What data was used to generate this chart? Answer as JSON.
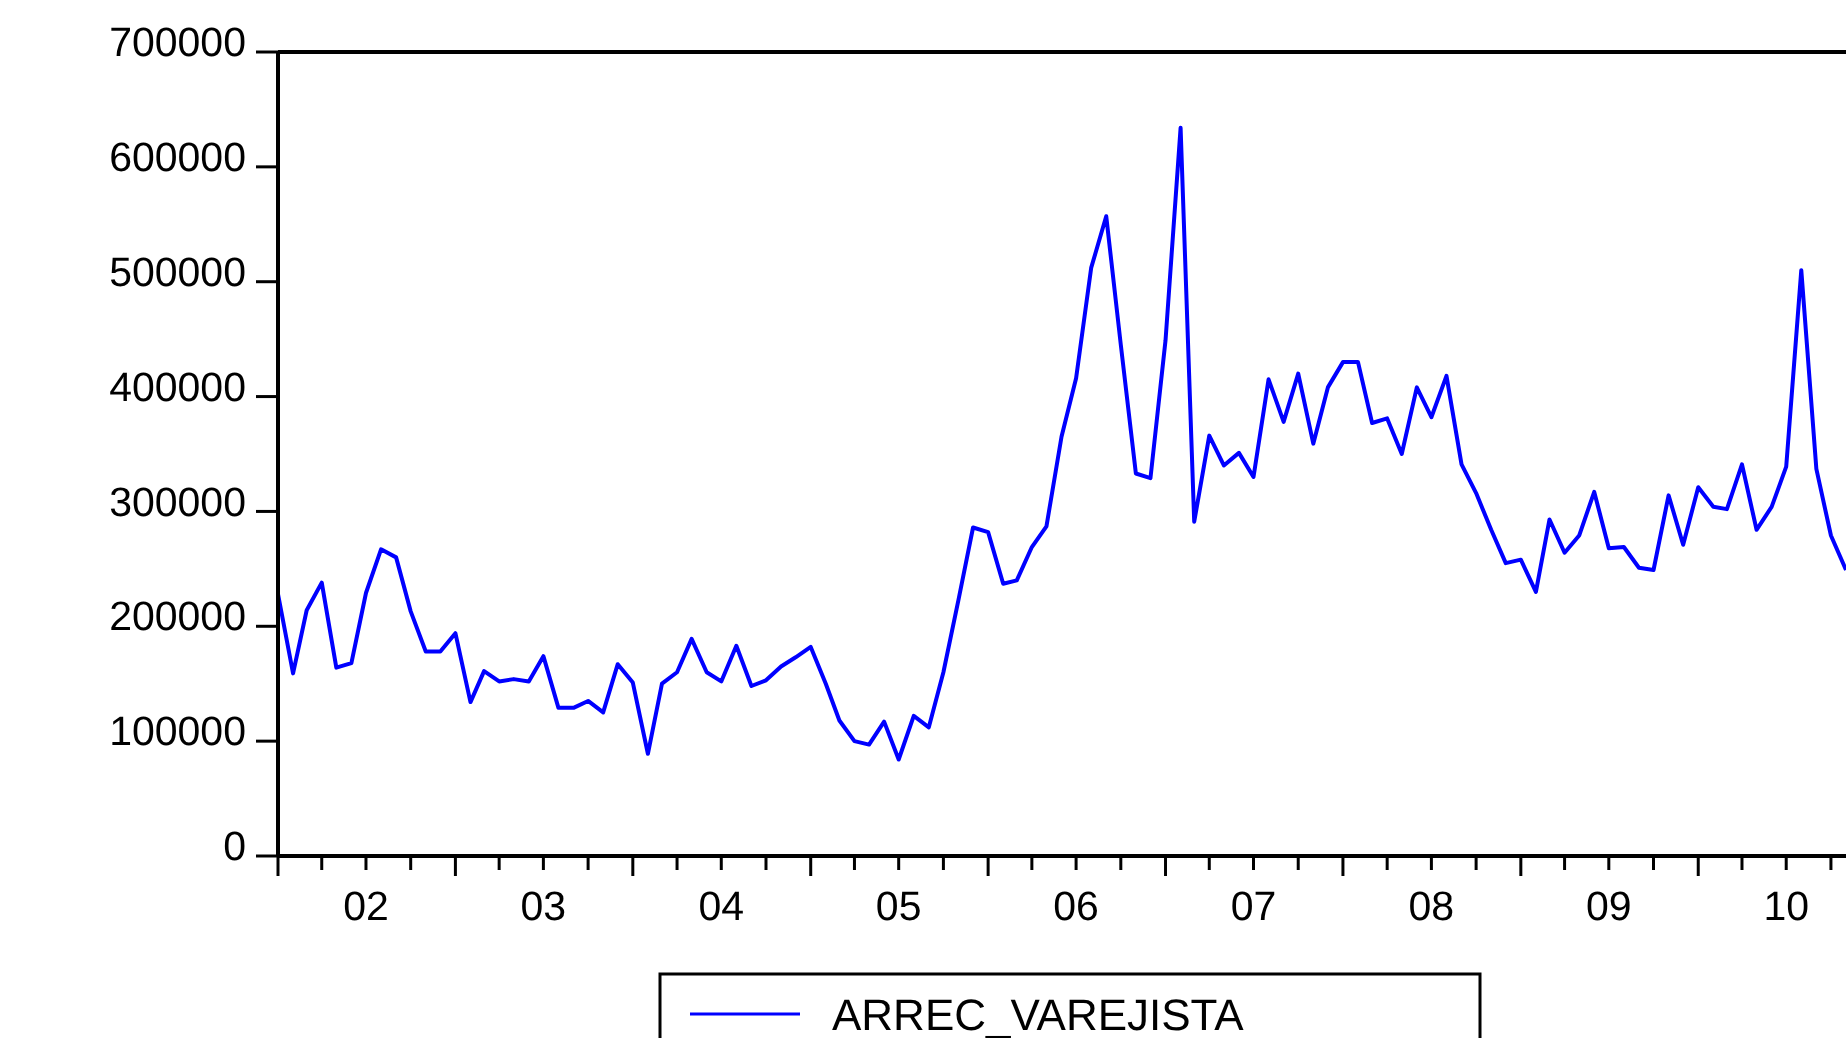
{
  "chart_data": {
    "type": "line",
    "x": [
      "2002-01",
      "2002-02",
      "2002-03",
      "2002-04",
      "2002-05",
      "2002-06",
      "2002-07",
      "2002-08",
      "2002-09",
      "2002-10",
      "2002-11",
      "2002-12",
      "2003-01",
      "2003-02",
      "2003-03",
      "2003-04",
      "2003-05",
      "2003-06",
      "2003-07",
      "2003-08",
      "2003-09",
      "2003-10",
      "2003-11",
      "2003-12",
      "2004-01",
      "2004-02",
      "2004-03",
      "2004-04",
      "2004-05",
      "2004-06",
      "2004-07",
      "2004-08",
      "2004-09",
      "2004-10",
      "2004-11",
      "2004-12",
      "2005-01",
      "2005-02",
      "2005-03",
      "2005-04",
      "2005-05",
      "2005-06",
      "2005-07",
      "2005-08",
      "2005-09",
      "2005-10",
      "2005-11",
      "2005-12",
      "2006-01",
      "2006-02",
      "2006-03",
      "2006-04",
      "2006-05",
      "2006-06",
      "2006-07",
      "2006-08",
      "2006-09",
      "2006-10",
      "2006-11",
      "2006-12",
      "2007-01",
      "2007-02",
      "2007-03",
      "2007-04",
      "2007-05",
      "2007-06",
      "2007-07",
      "2007-08",
      "2007-09",
      "2007-10",
      "2007-11",
      "2007-12",
      "2008-01",
      "2008-02",
      "2008-03",
      "2008-04",
      "2008-05",
      "2008-06",
      "2008-07",
      "2008-08",
      "2008-09",
      "2008-10",
      "2008-11",
      "2008-12",
      "2009-01",
      "2009-02",
      "2009-03",
      "2009-04",
      "2009-05",
      "2009-06",
      "2009-07",
      "2009-08",
      "2009-09",
      "2009-10",
      "2009-11",
      "2009-12",
      "2010-01",
      "2010-02",
      "2010-03",
      "2010-04",
      "2010-05",
      "2010-06",
      "2010-07",
      "2010-08",
      "2010-09",
      "2010-10",
      "2010-11"
    ],
    "series": [
      {
        "name": "ARREC_VAREJISTA",
        "color": "#0000ff",
        "values": [
          228000,
          159000,
          214000,
          238000,
          164000,
          168000,
          229000,
          267000,
          260000,
          213000,
          178000,
          178000,
          194000,
          134000,
          161000,
          152000,
          154000,
          152000,
          174000,
          129000,
          129000,
          135000,
          125000,
          167000,
          151000,
          89000,
          150000,
          160000,
          189000,
          160000,
          152000,
          183000,
          148000,
          153000,
          165000,
          173000,
          182000,
          150000,
          118000,
          100000,
          97000,
          117000,
          84000,
          122000,
          112000,
          160000,
          223000,
          286000,
          282000,
          237000,
          240000,
          269000,
          287000,
          365000,
          416000,
          512000,
          557000,
          445000,
          333000,
          329000,
          449000,
          634000,
          291000,
          366000,
          340000,
          351000,
          330000,
          415000,
          378000,
          420000,
          359000,
          408000,
          430000,
          430000,
          377000,
          381000,
          350000,
          408000,
          382000,
          418000,
          341000,
          316000,
          284000,
          255000,
          258000,
          230000,
          293000,
          264000,
          279000,
          317000,
          268000,
          269000,
          251000,
          249000,
          314000,
          271000,
          321000,
          304000,
          302000,
          341000,
          284000,
          304000,
          339000,
          510000,
          337000,
          279000,
          249000
        ]
      }
    ],
    "xlim": [
      "2002-01",
      "2010-11"
    ],
    "xticks": [
      {
        "value": "2002-01",
        "label": null
      },
      {
        "value": "2002-04",
        "label": null
      },
      {
        "value": "2002-07",
        "label": "02"
      },
      {
        "value": "2002-10",
        "label": null
      },
      {
        "value": "2003-01",
        "label": null
      },
      {
        "value": "2003-04",
        "label": null
      },
      {
        "value": "2003-07",
        "label": "03"
      },
      {
        "value": "2003-10",
        "label": null
      },
      {
        "value": "2004-01",
        "label": null
      },
      {
        "value": "2004-04",
        "label": null
      },
      {
        "value": "2004-07",
        "label": "04"
      },
      {
        "value": "2004-10",
        "label": null
      },
      {
        "value": "2005-01",
        "label": null
      },
      {
        "value": "2005-04",
        "label": null
      },
      {
        "value": "2005-07",
        "label": "05"
      },
      {
        "value": "2005-10",
        "label": null
      },
      {
        "value": "2006-01",
        "label": null
      },
      {
        "value": "2006-04",
        "label": null
      },
      {
        "value": "2006-07",
        "label": "06"
      },
      {
        "value": "2006-10",
        "label": null
      },
      {
        "value": "2007-01",
        "label": null
      },
      {
        "value": "2007-04",
        "label": null
      },
      {
        "value": "2007-07",
        "label": "07"
      },
      {
        "value": "2007-10",
        "label": null
      },
      {
        "value": "2008-01",
        "label": null
      },
      {
        "value": "2008-04",
        "label": null
      },
      {
        "value": "2008-07",
        "label": "08"
      },
      {
        "value": "2008-10",
        "label": null
      },
      {
        "value": "2009-01",
        "label": null
      },
      {
        "value": "2009-04",
        "label": null
      },
      {
        "value": "2009-07",
        "label": "09"
      },
      {
        "value": "2009-10",
        "label": null
      },
      {
        "value": "2010-01",
        "label": null
      },
      {
        "value": "2010-04",
        "label": null
      },
      {
        "value": "2010-07",
        "label": "10"
      },
      {
        "value": "2010-10",
        "label": null
      }
    ],
    "ylim": [
      0,
      700000
    ],
    "yticks": [
      0,
      100000,
      200000,
      300000,
      400000,
      500000,
      600000,
      700000
    ],
    "legend": "bottom",
    "grid": false,
    "marker": "none",
    "line_style": "solid"
  }
}
